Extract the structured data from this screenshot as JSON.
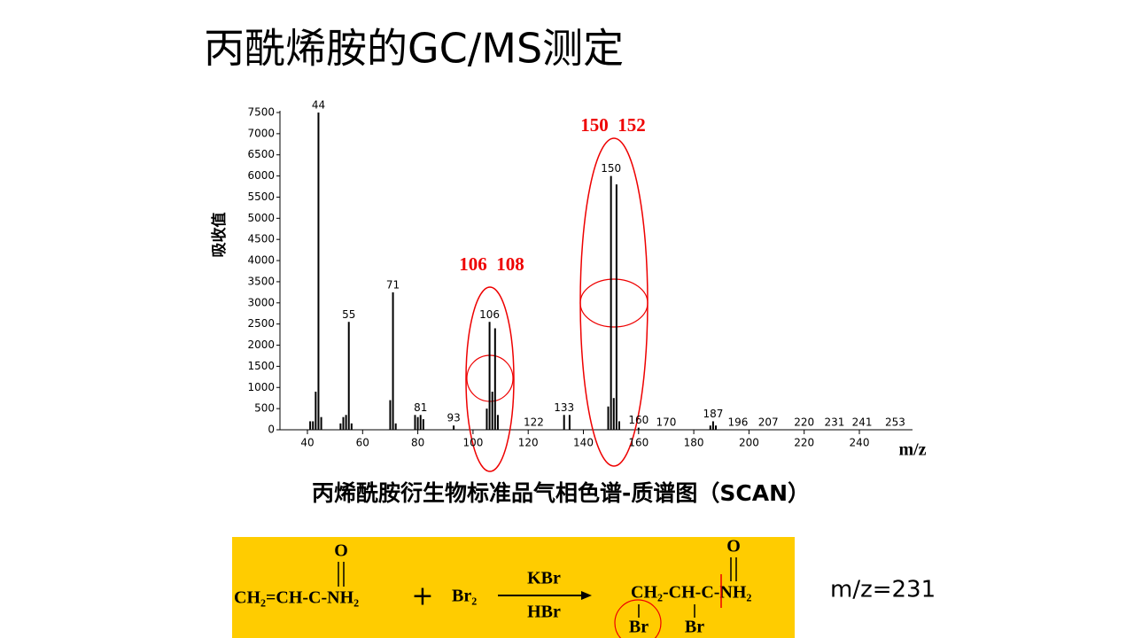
{
  "title": "丙酰烯胺的GC/MS测定",
  "chart_data": {
    "type": "spectrum",
    "y_label": "吸收值",
    "x_label": "m/z",
    "color": "#000000",
    "x": [
      41,
      42,
      43,
      44,
      45,
      52,
      53,
      54,
      55,
      56,
      70,
      71,
      72,
      79,
      80,
      81,
      82,
      93,
      105,
      106,
      107,
      108,
      109,
      133,
      135,
      149,
      150,
      151,
      152,
      153,
      160,
      186,
      187,
      188
    ],
    "values": [
      200,
      200,
      900,
      7500,
      300,
      150,
      300,
      350,
      2550,
      150,
      700,
      3250,
      150,
      350,
      300,
      350,
      250,
      100,
      500,
      2550,
      900,
      2400,
      350,
      350,
      350,
      550,
      6000,
      750,
      5800,
      200,
      50,
      100,
      200,
      100
    ],
    "peak_labels": [
      44,
      55,
      71,
      81,
      93,
      106,
      122,
      133,
      150,
      160,
      170,
      187,
      196,
      207,
      220,
      231,
      241,
      253
    ],
    "xlim": [
      30,
      259
    ],
    "xticks": [
      40,
      60,
      80,
      100,
      120,
      140,
      160,
      180,
      200,
      220,
      240
    ],
    "ylim": [
      0,
      7500
    ],
    "yticks": [
      0,
      500,
      1000,
      1500,
      2000,
      2500,
      3000,
      3500,
      4000,
      4500,
      5000,
      5500,
      6000,
      6500,
      7000,
      7500
    ],
    "annotations": [
      "106  108",
      "150  152"
    ]
  },
  "caption": "丙烯酰胺衍生物标准品气相色谱-质谱图（SCAN）",
  "reaction": {
    "reactant": "CH₂=CH-C-NH₂",
    "reactant_o": "O",
    "plus": "+",
    "reagent": "Br₂",
    "above_arrow": "KBr",
    "below_arrow": "HBr",
    "product": "CH₂-CH-C-NH₂",
    "product_o": "O",
    "br1": "Br",
    "br2": "Br"
  },
  "mz_note": "m/z=231"
}
